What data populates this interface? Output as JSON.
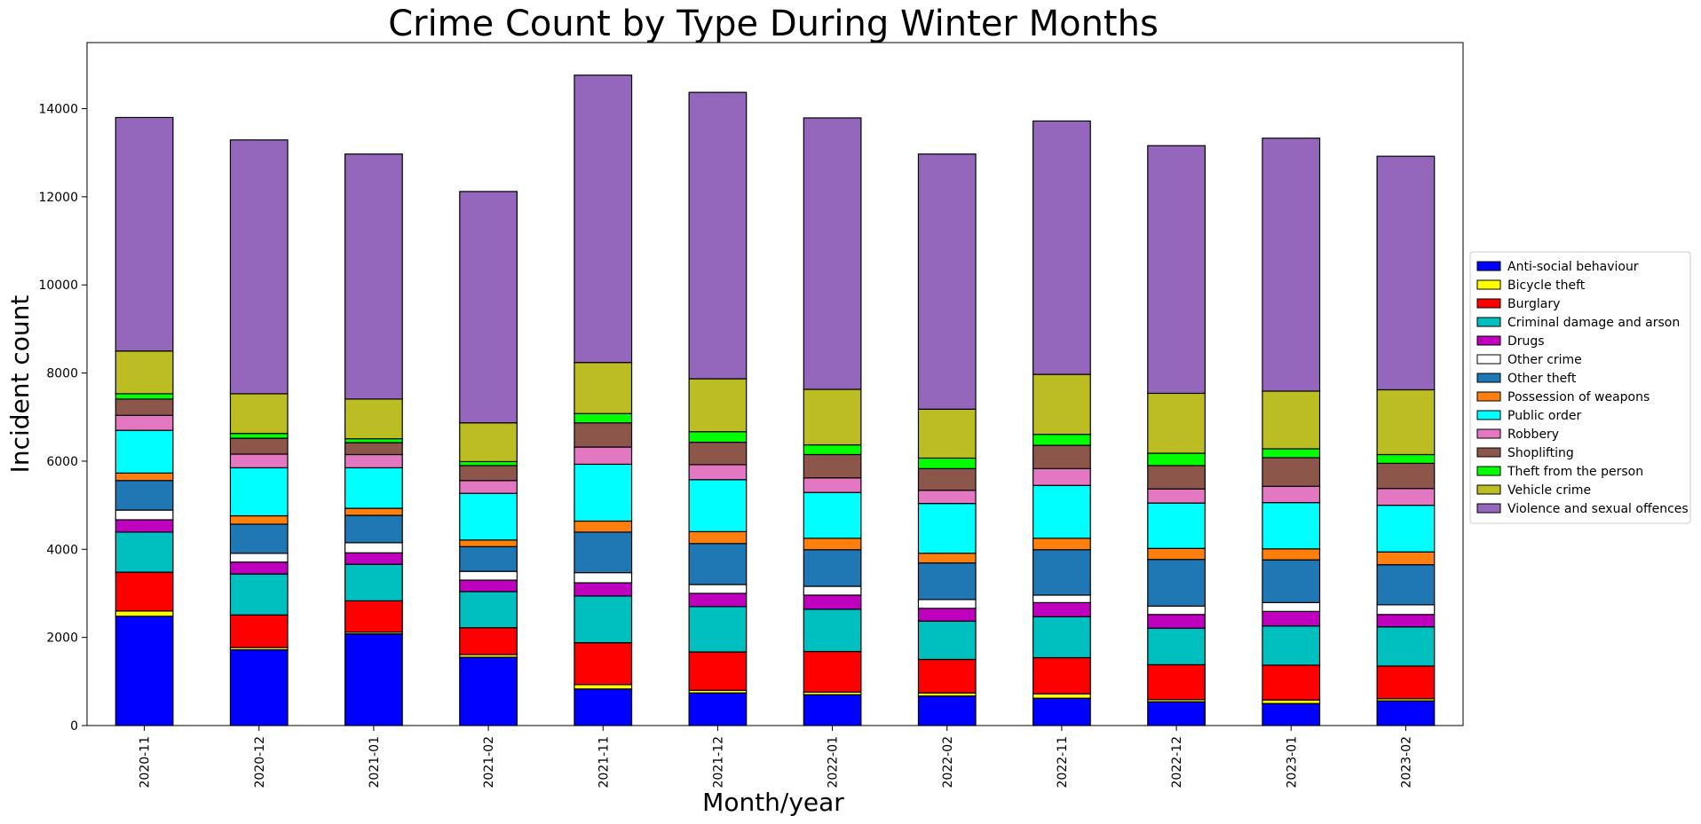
{
  "chart_data": {
    "type": "bar",
    "stacked": true,
    "title": "Crime Count by Type During Winter Months",
    "xlabel": "Month/year",
    "ylabel": "Incident count",
    "ylim": [
      0,
      15500
    ],
    "yticks": [
      0,
      2000,
      4000,
      6000,
      8000,
      10000,
      12000,
      14000
    ],
    "grid": false,
    "legend_position": "right",
    "categories": [
      "2020-11",
      "2020-12",
      "2021-01",
      "2021-02",
      "2021-11",
      "2021-12",
      "2022-01",
      "2022-02",
      "2022-11",
      "2022-12",
      "2023-01",
      "2023-02"
    ],
    "series": [
      {
        "name": "Anti-social behaviour",
        "color": "#0000ff",
        "values": [
          2480,
          1720,
          2080,
          1550,
          830,
          740,
          700,
          670,
          620,
          540,
          500,
          560
        ]
      },
      {
        "name": "Bicycle theft",
        "color": "#ffff00",
        "values": [
          120,
          50,
          40,
          60,
          100,
          60,
          60,
          70,
          100,
          50,
          80,
          50
        ]
      },
      {
        "name": "Burglary",
        "color": "#ff0000",
        "values": [
          880,
          740,
          710,
          610,
          950,
          870,
          920,
          760,
          820,
          790,
          790,
          740
        ]
      },
      {
        "name": "Criminal damage and arson",
        "color": "#00bfbf",
        "values": [
          910,
          930,
          830,
          820,
          1060,
          1030,
          960,
          870,
          930,
          830,
          890,
          890
        ]
      },
      {
        "name": "Drugs",
        "color": "#bf00bf",
        "values": [
          280,
          270,
          260,
          260,
          300,
          300,
          320,
          290,
          320,
          310,
          330,
          280
        ]
      },
      {
        "name": "Other crime",
        "color": "#ffffff",
        "values": [
          220,
          200,
          230,
          200,
          230,
          200,
          200,
          200,
          170,
          190,
          200,
          220
        ]
      },
      {
        "name": "Other theft",
        "color": "#1f77b4",
        "values": [
          670,
          660,
          620,
          560,
          920,
          930,
          830,
          830,
          1030,
          1060,
          970,
          910
        ]
      },
      {
        "name": "Possession of weapons",
        "color": "#ff7f0e",
        "values": [
          170,
          190,
          160,
          150,
          250,
          270,
          260,
          220,
          260,
          250,
          250,
          290
        ]
      },
      {
        "name": "Public order",
        "color": "#00ffff",
        "values": [
          970,
          1090,
          920,
          1060,
          1290,
          1180,
          1040,
          1130,
          1200,
          1030,
          1050,
          1060
        ]
      },
      {
        "name": "Robbery",
        "color": "#e377c2",
        "values": [
          340,
          310,
          300,
          290,
          390,
          340,
          330,
          300,
          380,
          320,
          370,
          380
        ]
      },
      {
        "name": "Shoplifting",
        "color": "#8c564b",
        "values": [
          370,
          360,
          270,
          340,
          550,
          510,
          530,
          490,
          530,
          530,
          650,
          570
        ]
      },
      {
        "name": "Theft from the person",
        "color": "#00ff00",
        "values": [
          120,
          110,
          90,
          90,
          210,
          240,
          220,
          240,
          250,
          280,
          200,
          200
        ]
      },
      {
        "name": "Vehicle crime",
        "color": "#bcbd22",
        "values": [
          970,
          900,
          900,
          880,
          1160,
          1200,
          1260,
          1110,
          1360,
          1360,
          1310,
          1470
        ]
      },
      {
        "name": "Violence and sexual offences",
        "color": "#9467bd",
        "values": [
          5300,
          5760,
          5560,
          5250,
          6520,
          6500,
          6160,
          5790,
          5750,
          5620,
          5740,
          5300
        ]
      }
    ]
  }
}
